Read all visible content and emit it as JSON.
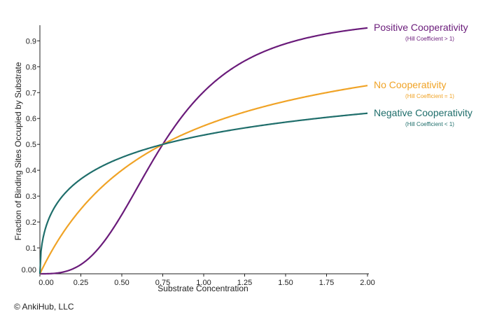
{
  "chart_data": {
    "type": "line",
    "title": "",
    "xlabel": "Substrate Concentration",
    "ylabel": "Fraction of Binding Sites Occupied by Substrate",
    "xlim": [
      0,
      2.0
    ],
    "ylim": [
      0,
      0.95
    ],
    "x_ticks": [
      "0.00",
      "0.25",
      "0.50",
      "0.75",
      "1.00",
      "1.25",
      "1.50",
      "1.75",
      "2.00"
    ],
    "y_ticks": [
      "0.00",
      "0.1",
      "0.2",
      "0.3",
      "0.4",
      "0.5",
      "0.6",
      "0.7",
      "0.8",
      "0.9"
    ],
    "grid": false,
    "series": [
      {
        "name": "Positive Cooperativity",
        "note": "(Hill Coefficient > 1)",
        "color": "#6a1b7a",
        "hill_coefficient": 3,
        "k_half": 0.75,
        "x": [
          0,
          0.25,
          0.5,
          0.75,
          1.0,
          1.25,
          1.5,
          1.75,
          2.0
        ],
        "values": [
          0.0,
          0.036,
          0.229,
          0.5,
          0.703,
          0.822,
          0.889,
          0.927,
          0.95
        ]
      },
      {
        "name": "No Cooperativity",
        "note": "(Hill Coefficient = 1)",
        "color": "#f0a326",
        "hill_coefficient": 1,
        "k_half": 0.75,
        "x": [
          0,
          0.25,
          0.5,
          0.75,
          1.0,
          1.25,
          1.5,
          1.75,
          2.0
        ],
        "values": [
          0.0,
          0.25,
          0.4,
          0.5,
          0.571,
          0.625,
          0.667,
          0.7,
          0.727
        ]
      },
      {
        "name": "Negative Cooperativity",
        "note": "(Hill Coefficient < 1)",
        "color": "#1f6e6b",
        "hill_coefficient": 0.5,
        "k_half": 0.75,
        "x": [
          0,
          0.25,
          0.5,
          0.75,
          1.0,
          1.25,
          1.5,
          1.75,
          2.0
        ],
        "values": [
          0.0,
          0.366,
          0.45,
          0.5,
          0.536,
          0.563,
          0.586,
          0.604,
          0.62
        ]
      }
    ]
  },
  "credit": "© AnkiHub, LLC"
}
